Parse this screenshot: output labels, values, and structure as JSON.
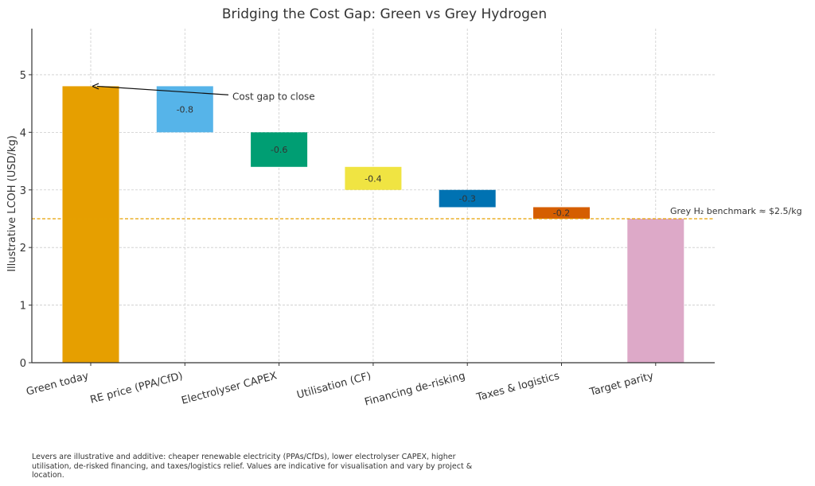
{
  "chart_data": {
    "type": "bar",
    "subtype": "waterfall",
    "title": "Bridging the Cost Gap: Green vs Grey Hydrogen",
    "xlabel": "",
    "ylabel": "Illustrative LCOH (USD/kg)",
    "ylim": [
      0,
      5.8
    ],
    "yticks": [
      0,
      1,
      2,
      3,
      4,
      5
    ],
    "grid": true,
    "categories": [
      "Green today",
      "RE price (PPA/CfD)",
      "Electrolyser CAPEX",
      "Utilisation (CF)",
      "Financing de-risking",
      "Taxes & logistics",
      "Target parity"
    ],
    "bars": [
      {
        "category": "Green today",
        "kind": "total",
        "start": 0,
        "end": 4.8,
        "value": 4.8,
        "label": "",
        "color": "#E69F00"
      },
      {
        "category": "RE price (PPA/CfD)",
        "kind": "delta",
        "start": 4.8,
        "end": 4.0,
        "value": -0.8,
        "label": "-0.8",
        "color": "#56B4E9"
      },
      {
        "category": "Electrolyser CAPEX",
        "kind": "delta",
        "start": 4.0,
        "end": 3.4,
        "value": -0.6,
        "label": "-0.6",
        "color": "#009E73"
      },
      {
        "category": "Utilisation (CF)",
        "kind": "delta",
        "start": 3.4,
        "end": 3.0,
        "value": -0.4,
        "label": "-0.4",
        "color": "#F0E442"
      },
      {
        "category": "Financing de-risking",
        "kind": "delta",
        "start": 3.0,
        "end": 2.7,
        "value": -0.3,
        "label": "-0.3",
        "color": "#0072B2"
      },
      {
        "category": "Taxes & logistics",
        "kind": "delta",
        "start": 2.7,
        "end": 2.5,
        "value": -0.2,
        "label": "-0.2",
        "color": "#D55E00"
      },
      {
        "category": "Target parity",
        "kind": "total",
        "start": 0,
        "end": 2.5,
        "value": 2.5,
        "label": "",
        "color": "#DDA9C8"
      }
    ],
    "benchmark": {
      "value": 2.5,
      "label": "Grey H₂ benchmark ≈ $2.5/kg",
      "color": "#E6A100",
      "style": "dashed"
    },
    "annotations": [
      {
        "text": "Cost gap to close",
        "arrow_to": {
          "category": "Green today",
          "y": 4.8
        },
        "text_at": {
          "category_index": 1.5,
          "y": 4.65
        }
      }
    ]
  },
  "caption": "Levers are illustrative and additive: cheaper renewable electricity (PPAs/CfDs), lower electrolyser CAPEX, higher utilisation, de-risked financing, and taxes/logistics relief. Values are indicative for visualisation and vary by project & location."
}
